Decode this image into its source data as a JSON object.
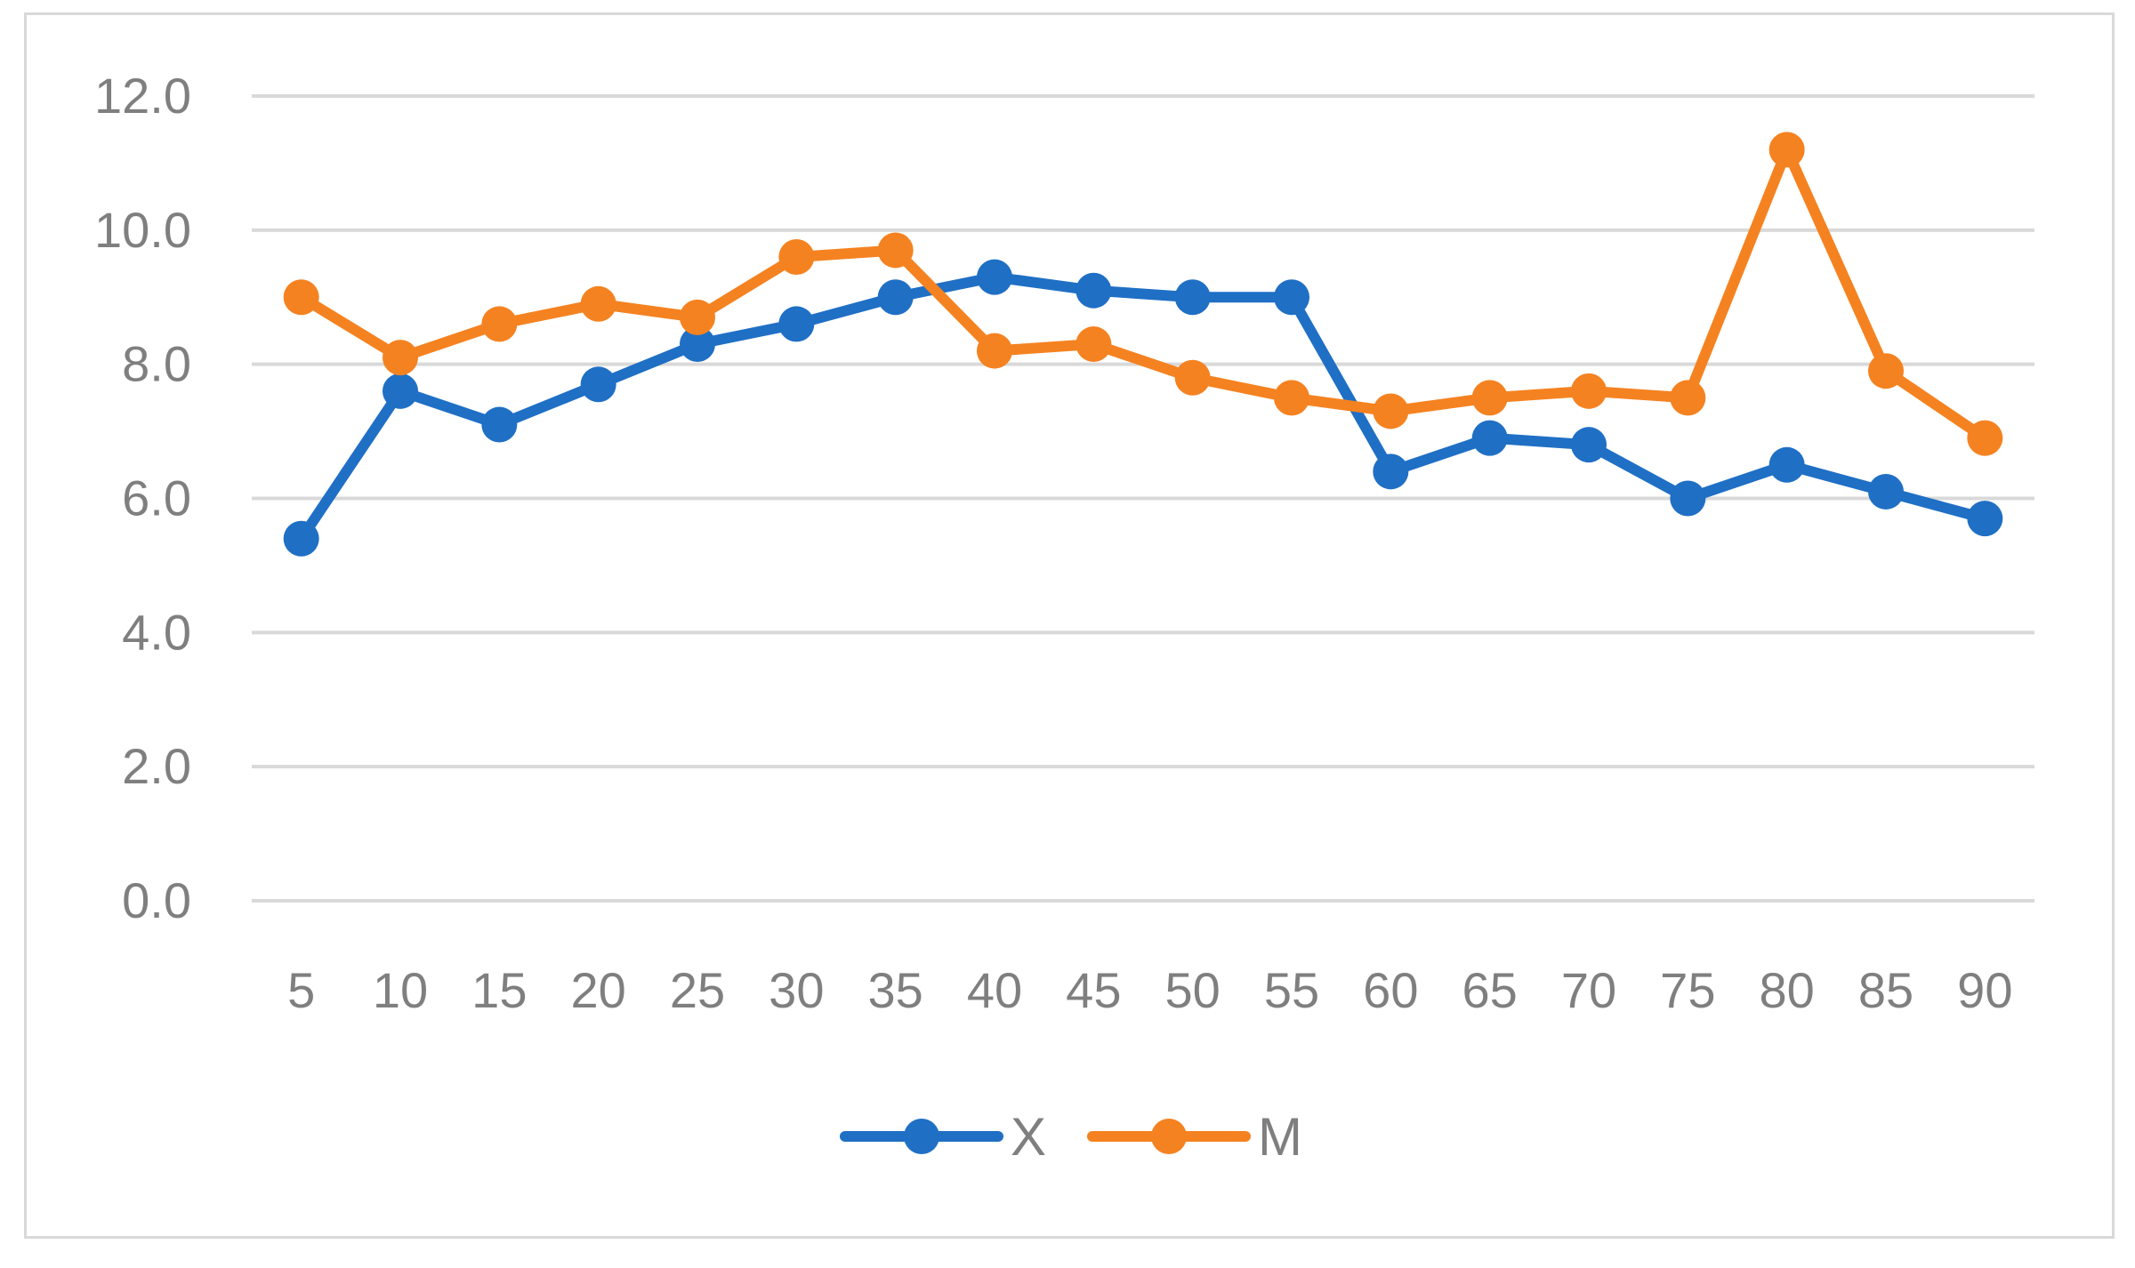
{
  "chart_data": {
    "type": "line",
    "title": "",
    "xlabel": "",
    "ylabel": "",
    "categories": [
      "5",
      "10",
      "15",
      "20",
      "25",
      "30",
      "35",
      "40",
      "45",
      "50",
      "55",
      "60",
      "65",
      "70",
      "75",
      "80",
      "85",
      "90"
    ],
    "ylim": [
      0,
      12
    ],
    "yticks": [
      "0.0",
      "2.0",
      "4.0",
      "6.0",
      "8.0",
      "10.0",
      "12.0"
    ],
    "grid": true,
    "legend_position": "bottom",
    "series": [
      {
        "name": "X",
        "color": "#1f6fc5",
        "values": [
          5.4,
          7.6,
          7.1,
          7.7,
          8.3,
          8.6,
          9.0,
          9.3,
          9.1,
          9.0,
          9.0,
          6.4,
          6.9,
          6.8,
          6.0,
          6.5,
          6.1,
          5.7
        ]
      },
      {
        "name": "M",
        "color": "#f58220",
        "values": [
          9.0,
          8.1,
          8.6,
          8.9,
          8.7,
          9.6,
          9.7,
          8.2,
          8.3,
          7.8,
          7.5,
          7.3,
          7.5,
          7.6,
          7.5,
          11.2,
          7.9,
          6.9
        ]
      }
    ]
  }
}
